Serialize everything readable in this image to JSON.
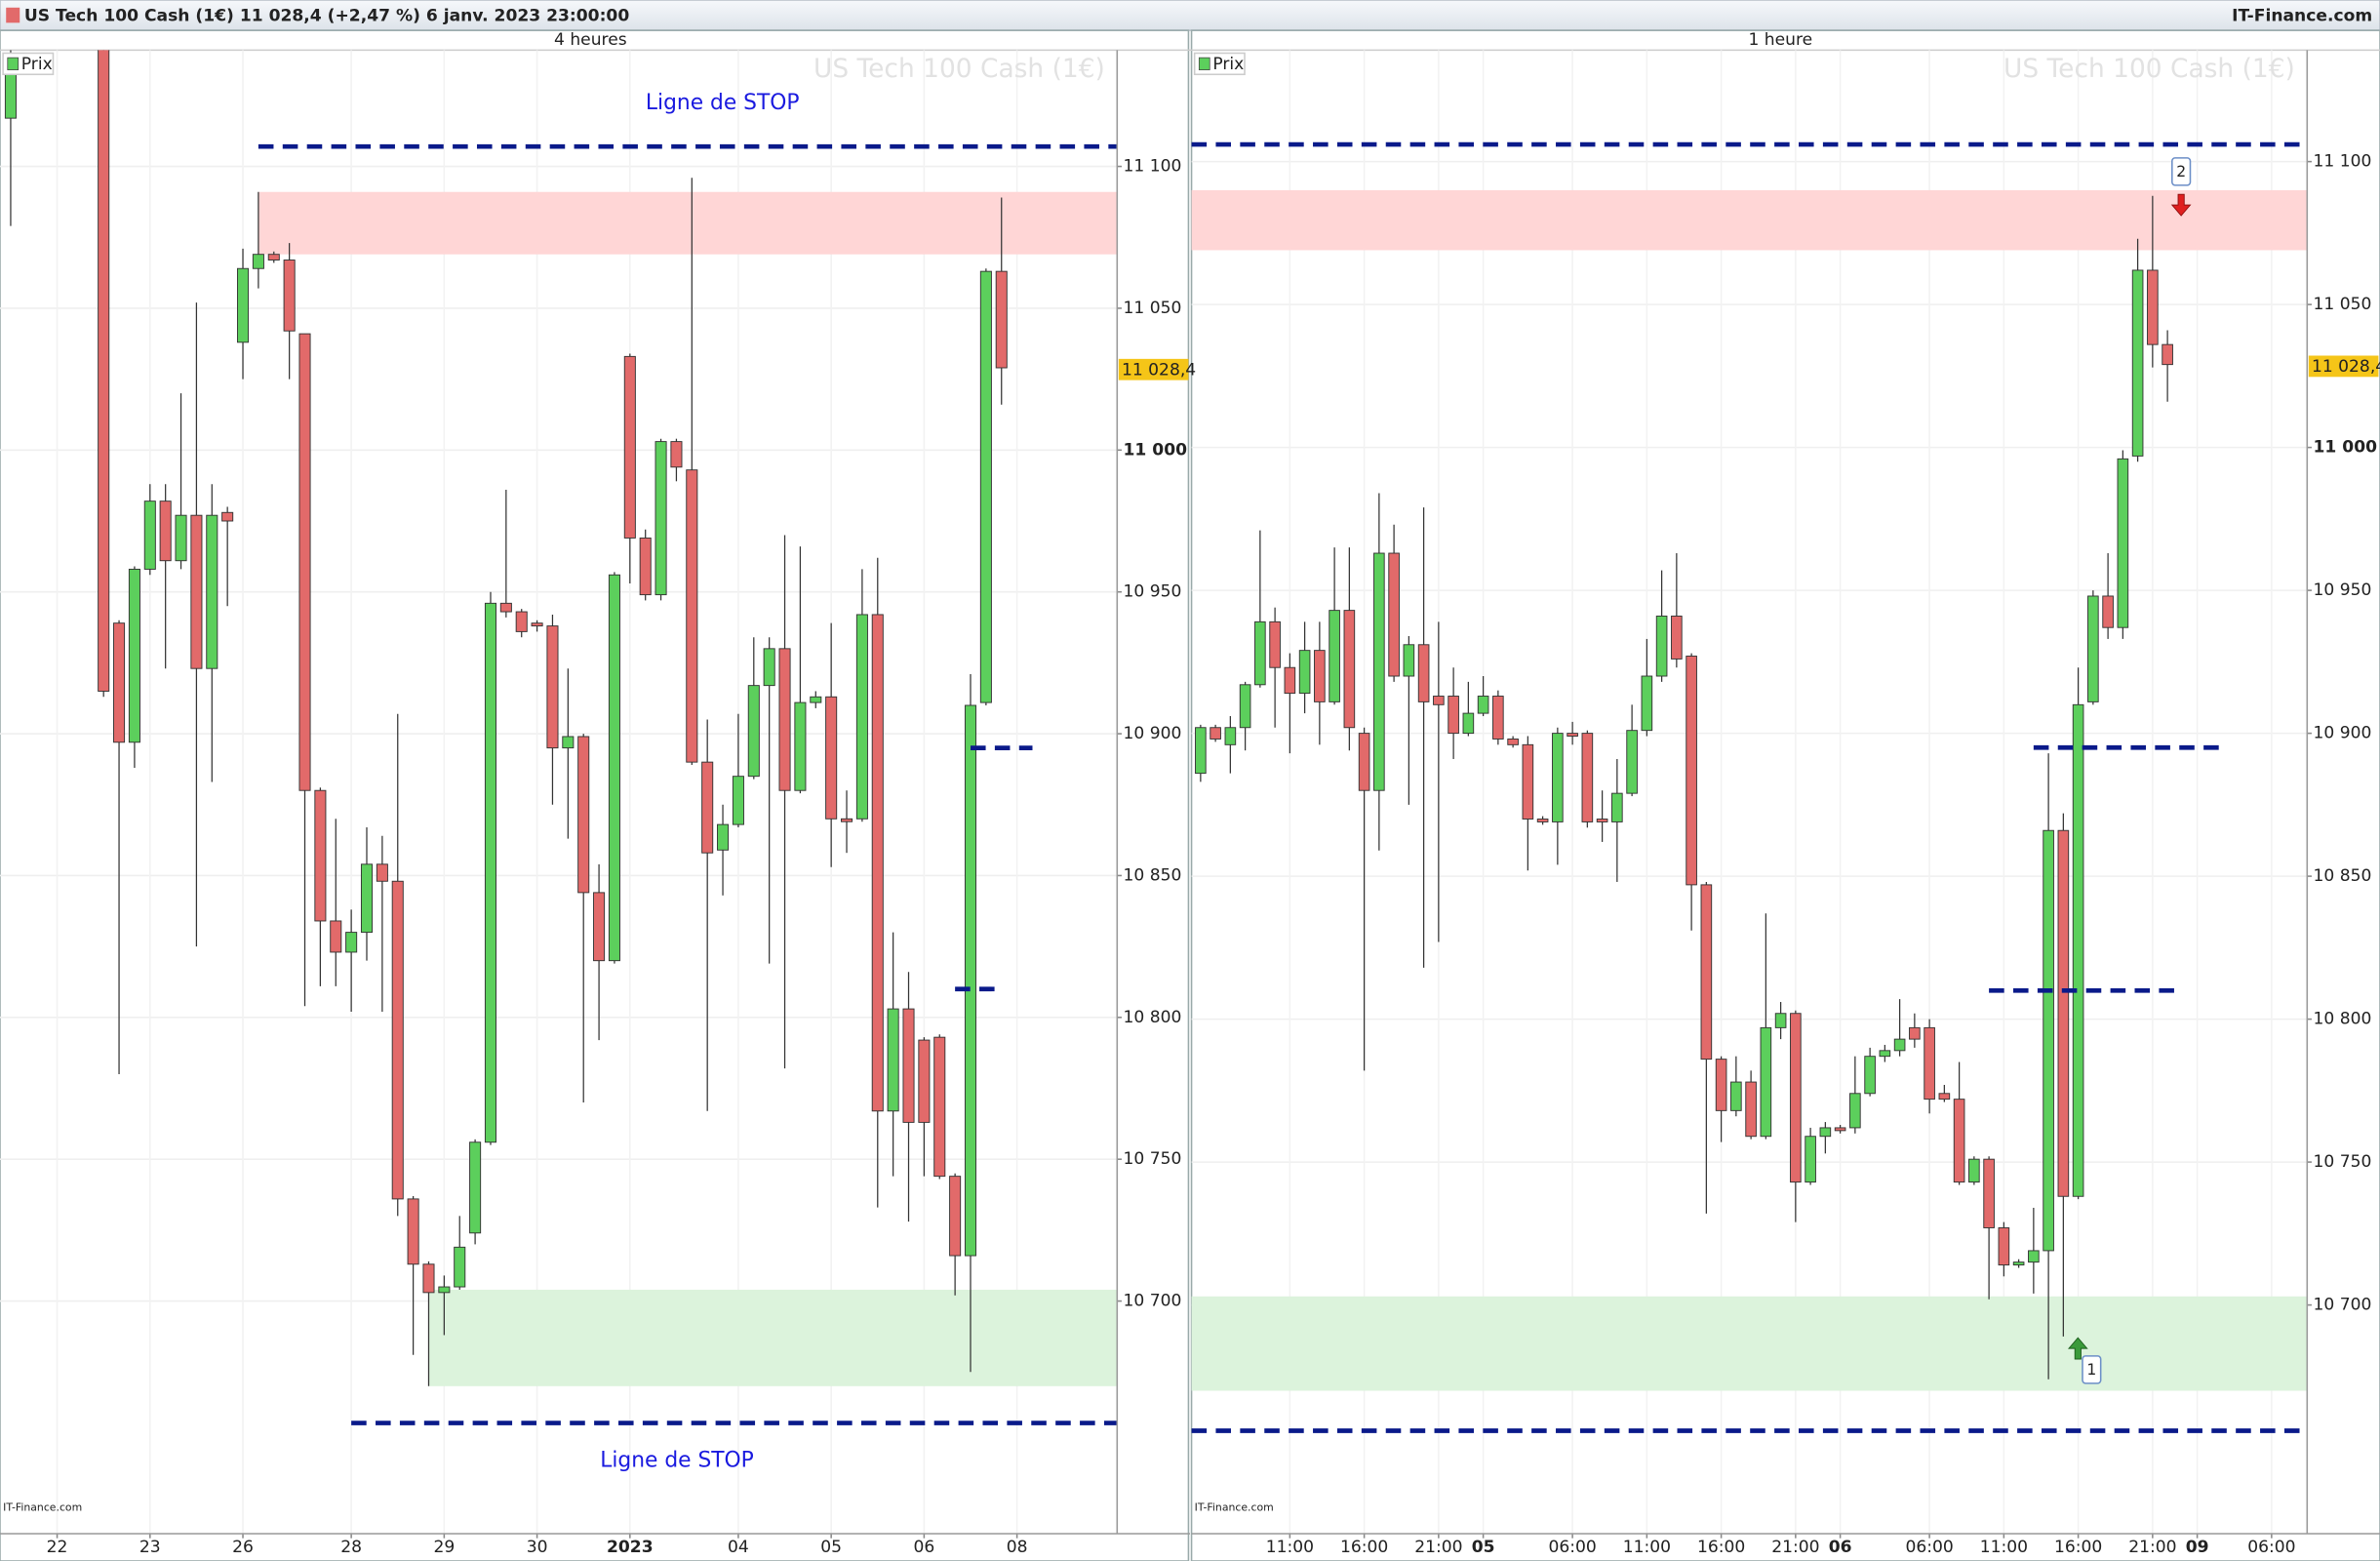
{
  "header": {
    "title": "US Tech 100 Cash (1€) 11 028,4 (+2,47 %) 6 janv. 2023 23:00:00",
    "brand": "IT-Finance.com"
  },
  "chart_data": [
    {
      "type": "candlestick",
      "title": "4 heures",
      "watermark": "US Tech 100 Cash (1€)",
      "legend": "Prix",
      "credit": "IT-Finance.com",
      "up_color": "#5ccf5c",
      "down_color": "#e26a6a",
      "annotations": [
        "Ligne de STOP",
        "Ligne de STOP"
      ],
      "last": {
        "value": 11028.4,
        "label": "11 028,4"
      },
      "xlim": [
        -0.69,
        71.47
      ],
      "ylim": [
        10618,
        11141
      ],
      "xticks": [
        {
          "value": 3,
          "label": "22"
        },
        {
          "value": 9,
          "label": "23"
        },
        {
          "value": 15,
          "label": "26"
        },
        {
          "value": 22,
          "label": "28"
        },
        {
          "value": 28,
          "label": "29"
        },
        {
          "value": 34,
          "label": "30"
        },
        {
          "value": 40,
          "label": "2023",
          "bold": true
        },
        {
          "value": 47,
          "label": "04"
        },
        {
          "value": 53,
          "label": "05"
        },
        {
          "value": 59,
          "label": "06"
        },
        {
          "value": 65,
          "label": "08"
        }
      ],
      "yticks": [
        {
          "value": 10700,
          "label": "10 700"
        },
        {
          "value": 10750,
          "label": "10 750"
        },
        {
          "value": 10800,
          "label": "10 800"
        },
        {
          "value": 10850,
          "label": "10 850"
        },
        {
          "value": 10900,
          "label": "10 900"
        },
        {
          "value": 10950,
          "label": "10 950"
        },
        {
          "value": 11000,
          "label": "11 000",
          "bold": true
        },
        {
          "value": 11050,
          "label": "11 050"
        },
        {
          "value": 11100,
          "label": "11 100"
        }
      ],
      "zones": [
        {
          "low": 11069,
          "high": 11091,
          "from": 16,
          "color": "#ffd6d6"
        },
        {
          "low": 10670,
          "high": 10704,
          "from": 27,
          "color": "#dcf3dc"
        }
      ],
      "lines": [
        {
          "value": 11107,
          "from": 16,
          "color": "#0a1a8a"
        },
        {
          "value": 10657,
          "from": 22,
          "color": "#0a1a8a"
        },
        {
          "value": 10895,
          "from": 62,
          "to": 66,
          "color": "#0a1a8a"
        },
        {
          "value": 10810,
          "from": 61,
          "to": 64,
          "color": "#0a1a8a"
        }
      ],
      "x": [
        0,
        6,
        7,
        8,
        9,
        10,
        11,
        12,
        13,
        14,
        15,
        16,
        17,
        18,
        19,
        20,
        21,
        22,
        23,
        24,
        25,
        26,
        27,
        28,
        29,
        30,
        31,
        32,
        33,
        34,
        35,
        36,
        37,
        38,
        39,
        40,
        41,
        42,
        43,
        44,
        45,
        46,
        47,
        48,
        49,
        50,
        51,
        52,
        53,
        54,
        55,
        56,
        57,
        58,
        59,
        60,
        61,
        62,
        63,
        64
      ],
      "open": [
        11117,
        11150,
        10939,
        10897,
        10958,
        10982,
        10961,
        10977,
        10923,
        10978,
        11038,
        11064,
        11069,
        11067,
        11041,
        10880,
        10834,
        10823,
        10830,
        10854,
        10848,
        10736,
        10713,
        10703,
        10705,
        10724,
        10756,
        10946,
        10943,
        10939,
        10938,
        10895,
        10899,
        10844,
        10820,
        11033,
        10969,
        10949,
        11003,
        10993,
        10890,
        10859,
        10868,
        10885,
        10917,
        10930,
        10880,
        10911,
        10913,
        10870,
        10870,
        10942,
        10767,
        10803,
        10792,
        10793,
        10744,
        10716,
        10911,
        11063
      ],
      "high": [
        11141,
        11155,
        10940,
        10959,
        10988,
        10988,
        11020,
        11052,
        10988,
        10980,
        11071,
        11091,
        11070,
        11073,
        11041,
        10881,
        10870,
        10838,
        10867,
        10864,
        10907,
        10737,
        10714,
        10709,
        10730,
        10757,
        10950,
        10986,
        10944,
        10940,
        10942,
        10923,
        10900,
        10854,
        10957,
        11034,
        10972,
        11004,
        11004,
        11096,
        10905,
        10875,
        10907,
        10934,
        10934,
        10970,
        10966,
        10915,
        10939,
        10880,
        10958,
        10962,
        10830,
        10816,
        10793,
        10794,
        10745,
        10921,
        11064,
        11089
      ],
      "low": [
        11079,
        10913,
        10780,
        10888,
        10956,
        10923,
        10958,
        10825,
        10883,
        10945,
        11025,
        11057,
        11066,
        11025,
        10804,
        10811,
        10811,
        10802,
        10820,
        10802,
        10730,
        10681,
        10670,
        10688,
        10704,
        10720,
        10755,
        10941,
        10934,
        10936,
        10875,
        10863,
        10770,
        10792,
        10819,
        10953,
        10947,
        10947,
        10989,
        10889,
        10767,
        10843,
        10867,
        10884,
        10819,
        10782,
        10879,
        10909,
        10853,
        10858,
        10869,
        10733,
        10744,
        10728,
        10744,
        10743,
        10702,
        10675,
        10910,
        11016
      ],
      "close": [
        11137,
        10915,
        10897,
        10958,
        10982,
        10961,
        10977,
        10923,
        10977,
        10975,
        11064,
        11069,
        11067,
        11042,
        10880,
        10834,
        10823,
        10830,
        10854,
        10848,
        10736,
        10713,
        10703,
        10705,
        10719,
        10756,
        10946,
        10943,
        10936,
        10938,
        10895,
        10899,
        10844,
        10820,
        10956,
        10969,
        10949,
        11003,
        10994,
        10890,
        10858,
        10868,
        10885,
        10917,
        10930,
        10880,
        10911,
        10913,
        10870,
        10869,
        10942,
        10767,
        10803,
        10763,
        10763,
        10744,
        10716,
        10910,
        11063,
        11029
      ]
    },
    {
      "type": "candlestick",
      "title": "1 heure",
      "watermark": "US Tech 100 Cash (1€)",
      "legend": "Prix",
      "credit": "IT-Finance.com",
      "up_color": "#5ccf5c",
      "down_color": "#e26a6a",
      "markers": [
        "1",
        "2"
      ],
      "last": {
        "value": 11028.4,
        "label": "11 028,4"
      },
      "xlim": [
        -0.61,
        74.39
      ],
      "ylim": [
        10620,
        11139
      ],
      "xticks": [
        {
          "value": 6,
          "label": "11:00"
        },
        {
          "value": 11,
          "label": "16:00"
        },
        {
          "value": 16,
          "label": "21:00"
        },
        {
          "value": 19,
          "label": "05",
          "bold": true
        },
        {
          "value": 25,
          "label": "06:00"
        },
        {
          "value": 30,
          "label": "11:00"
        },
        {
          "value": 35,
          "label": "16:00"
        },
        {
          "value": 40,
          "label": "21:00"
        },
        {
          "value": 43,
          "label": "06",
          "bold": true
        },
        {
          "value": 49,
          "label": "06:00"
        },
        {
          "value": 54,
          "label": "11:00"
        },
        {
          "value": 59,
          "label": "16:00"
        },
        {
          "value": 64,
          "label": "21:00"
        },
        {
          "value": 67,
          "label": "09",
          "bold": true
        },
        {
          "value": 72,
          "label": "06:00"
        }
      ],
      "yticks": [
        {
          "value": 10700,
          "label": "10 700"
        },
        {
          "value": 10750,
          "label": "10 750"
        },
        {
          "value": 10800,
          "label": "10 800"
        },
        {
          "value": 10850,
          "label": "10 850"
        },
        {
          "value": 10900,
          "label": "10 900"
        },
        {
          "value": 10950,
          "label": "10 950"
        },
        {
          "value": 11000,
          "label": "11 000",
          "bold": true
        },
        {
          "value": 11050,
          "label": "11 050"
        },
        {
          "value": 11100,
          "label": "11 100"
        }
      ],
      "zones": [
        {
          "low": 11069,
          "high": 11090,
          "color": "#ffd6d6"
        },
        {
          "low": 10670,
          "high": 10703,
          "color": "#dcf3dc"
        }
      ],
      "lines": [
        {
          "value": 11106,
          "color": "#0a1a8a"
        },
        {
          "value": 10656,
          "color": "#0a1a8a"
        },
        {
          "value": 10895,
          "from": 56,
          "to": 69,
          "color": "#0a1a8a"
        },
        {
          "value": 10810,
          "from": 53,
          "to": 66,
          "color": "#0a1a8a"
        }
      ],
      "x": [
        0,
        1,
        2,
        3,
        4,
        5,
        6,
        7,
        8,
        9,
        10,
        11,
        12,
        13,
        14,
        15,
        16,
        17,
        18,
        19,
        20,
        21,
        22,
        23,
        24,
        25,
        26,
        27,
        28,
        29,
        30,
        31,
        32,
        33,
        34,
        35,
        36,
        37,
        38,
        39,
        40,
        41,
        42,
        43,
        44,
        45,
        46,
        47,
        48,
        49,
        50,
        51,
        52,
        53,
        54,
        55,
        56,
        57,
        58,
        59,
        60,
        61,
        62,
        63,
        64,
        65
      ],
      "open": [
        10886,
        10902,
        10896,
        10902,
        10917,
        10939,
        10923,
        10914,
        10929,
        10911,
        10943,
        10900,
        10880,
        10963,
        10920,
        10931,
        10913,
        10913,
        10900,
        10907,
        10913,
        10898,
        10896,
        10870,
        10869,
        10900,
        10900,
        10870,
        10869,
        10879,
        10901,
        10920,
        10941,
        10927,
        10847,
        10786,
        10768,
        10778,
        10759,
        10797,
        10802,
        10743,
        10759,
        10762,
        10762,
        10774,
        10787,
        10789,
        10797,
        10797,
        10774,
        10772,
        10743,
        10751,
        10727,
        10714,
        10715,
        10719,
        10866,
        10738,
        10911,
        10948,
        10937,
        10997,
        11062,
        11036
      ],
      "high": [
        10903,
        10903,
        10906,
        10918,
        10971,
        10944,
        10928,
        10939,
        10939,
        10965,
        10965,
        10902,
        10984,
        10973,
        10934,
        10979,
        10939,
        10923,
        10918,
        10920,
        10915,
        10899,
        10899,
        10871,
        10902,
        10904,
        10901,
        10880,
        10891,
        10910,
        10933,
        10957,
        10963,
        10928,
        10848,
        10787,
        10787,
        10782,
        10837,
        10806,
        10803,
        10762,
        10764,
        10763,
        10787,
        10790,
        10791,
        10807,
        10802,
        10800,
        10777,
        10785,
        10752,
        10752,
        10729,
        10716,
        10734,
        10893,
        10872,
        10923,
        10950,
        10963,
        10999,
        11073,
        11088,
        11041
      ],
      "low": [
        10883,
        10897,
        10886,
        10894,
        10916,
        10902,
        10893,
        10907,
        10896,
        10910,
        10894,
        10782,
        10859,
        10918,
        10875,
        10818,
        10827,
        10891,
        10899,
        10906,
        10896,
        10895,
        10852,
        10868,
        10854,
        10896,
        10867,
        10862,
        10848,
        10878,
        10899,
        10918,
        10923,
        10831,
        10732,
        10757,
        10766,
        10758,
        10758,
        10793,
        10729,
        10742,
        10753,
        10760,
        10760,
        10773,
        10785,
        10787,
        10790,
        10767,
        10771,
        10742,
        10742,
        10702,
        10710,
        10713,
        10704,
        10674,
        10689,
        10737,
        10910,
        10933,
        10933,
        10995,
        11028,
        11016
      ],
      "close": [
        10902,
        10898,
        10902,
        10917,
        10939,
        10923,
        10914,
        10929,
        10911,
        10943,
        10902,
        10880,
        10963,
        10920,
        10931,
        10911,
        10910,
        10900,
        10907,
        10913,
        10898,
        10896,
        10870,
        10869,
        10900,
        10899,
        10869,
        10869,
        10879,
        10901,
        10920,
        10941,
        10926,
        10847,
        10786,
        10768,
        10778,
        10759,
        10797,
        10802,
        10743,
        10759,
        10762,
        10761,
        10774,
        10787,
        10789,
        10793,
        10793,
        10772,
        10772,
        10743,
        10751,
        10727,
        10714,
        10715,
        10719,
        10866,
        10738,
        10910,
        10948,
        10937,
        10996,
        11062,
        11036,
        11029
      ]
    }
  ]
}
